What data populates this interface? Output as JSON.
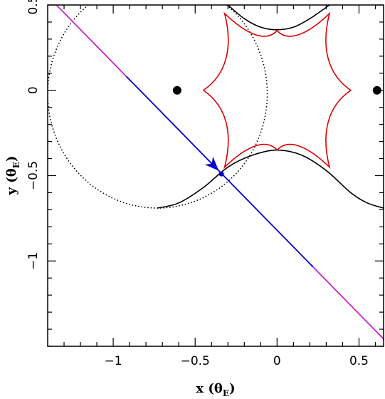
{
  "chart_data": {
    "type": "line",
    "xlabel": "x",
    "ylabel": "y",
    "xunit": "θ",
    "yunit": "θ",
    "unit_subscript": "E",
    "xlim": [
      -1.4,
      0.65
    ],
    "ylim": [
      -1.5,
      0.5
    ],
    "x_ticks": [
      -1,
      -0.5,
      0,
      0.5
    ],
    "x_tick_labels": [
      "−1",
      "−0.5",
      "0",
      "0.5"
    ],
    "y_ticks": [
      -1,
      -0.5,
      0,
      0.5
    ],
    "y_tick_labels": [
      "−1",
      "−0.5",
      "0",
      "0.5"
    ],
    "x_minor_step": 0.1,
    "y_minor_step": 0.1,
    "grid": false,
    "lenses": [
      {
        "x": -0.61,
        "y": 0.0
      },
      {
        "x": 0.61,
        "y": 0.0
      }
    ],
    "trajectory": {
      "slope": -0.98,
      "intercept": -0.82,
      "x_range": [
        -1.4,
        0.65
      ],
      "blue_segment_x": [
        -0.92,
        0.22
      ],
      "arrow_at_x": -0.38,
      "source_point": {
        "x": -0.34,
        "y": -0.49
      },
      "colors": {
        "outer": "#cc22cc",
        "inner": "#0000cc"
      }
    },
    "caustic": {
      "color": "#dd0000",
      "cusps": [
        {
          "x": 0.0,
          "y": 0.35
        },
        {
          "x": 0.0,
          "y": -0.35
        },
        {
          "x": -0.45,
          "y": 0.0
        },
        {
          "x": 0.45,
          "y": 0.0
        }
      ],
      "corners": [
        {
          "x": -0.32,
          "y": 0.45
        },
        {
          "x": 0.32,
          "y": 0.45
        },
        {
          "x": 0.32,
          "y": -0.45
        },
        {
          "x": -0.32,
          "y": -0.45
        }
      ]
    },
    "critical_curve": {
      "color": "#000000",
      "dotted_circle": {
        "cx": -0.73,
        "cy": -0.02,
        "r": 0.67
      },
      "solid_bottom": [
        [
          -0.73,
          -0.69
        ],
        [
          -0.6,
          -0.66
        ],
        [
          -0.45,
          -0.57
        ],
        [
          -0.3,
          -0.45
        ],
        [
          -0.15,
          -0.38
        ],
        [
          0.0,
          -0.35
        ],
        [
          0.15,
          -0.38
        ],
        [
          0.3,
          -0.47
        ],
        [
          0.45,
          -0.6
        ],
        [
          0.55,
          -0.66
        ],
        [
          0.65,
          -0.69
        ]
      ],
      "solid_top": [
        [
          -0.3,
          0.5
        ],
        [
          -0.2,
          0.42
        ],
        [
          -0.1,
          0.37
        ],
        [
          0.0,
          0.355
        ],
        [
          0.1,
          0.37
        ],
        [
          0.2,
          0.42
        ],
        [
          0.32,
          0.5
        ]
      ]
    }
  }
}
